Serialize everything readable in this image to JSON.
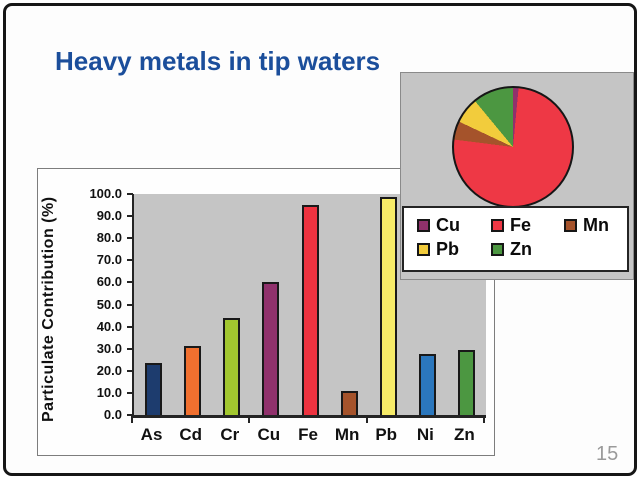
{
  "slide": {
    "title": "Heavy metals in tip waters",
    "page_number": "15",
    "colors": {
      "title_text": "#1B4E9B",
      "plot_background": "#C5C5C5",
      "page_number_text": "#9A9A9A"
    }
  },
  "chart_data": [
    {
      "type": "bar",
      "title": "",
      "xlabel": "",
      "ylabel": "Particulate Contribution (%)",
      "categories": [
        "As",
        "Cd",
        "Cr",
        "Cu",
        "Fe",
        "Mn",
        "Pb",
        "Ni",
        "Zn"
      ],
      "values": [
        23.5,
        31.0,
        44.0,
        60.0,
        95.0,
        11.0,
        98.5,
        27.5,
        29.5
      ],
      "bar_colors": [
        "#1D3C6E",
        "#F1702F",
        "#A2C72F",
        "#90316C",
        "#EE3340",
        "#A5532B",
        "#F6EB68",
        "#2B77BD",
        "#4C9741"
      ],
      "ylim": [
        0,
        100
      ],
      "ytick_labels": [
        "100.0",
        "90.0",
        "80.0",
        "70.0",
        "60.0",
        "50.0",
        "40.0",
        "30.0",
        "20.0",
        "10.0",
        "0.0"
      ],
      "grid": false,
      "legend_position": "none"
    },
    {
      "type": "pie",
      "title": "",
      "categories": [
        "Cu",
        "Fe",
        "Mn",
        "Pb",
        "Zn"
      ],
      "values": [
        1.5,
        75.5,
        5.0,
        7.0,
        11.0
      ],
      "slice_colors": [
        "#90316C",
        "#EE3845",
        "#A5532B",
        "#F2CC3C",
        "#4C9741"
      ],
      "legend_position": "bottom",
      "legend_rows": [
        [
          "Cu",
          "Fe",
          "Mn"
        ],
        [
          "Pb",
          "Zn"
        ]
      ]
    }
  ]
}
